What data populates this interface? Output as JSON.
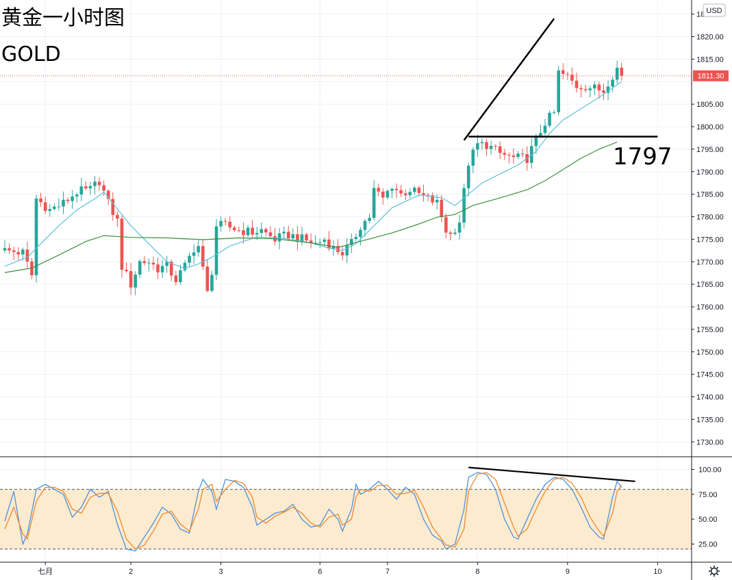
{
  "header": {
    "title": "黄金一小时图",
    "symbol": "GOLD"
  },
  "currency_label": "USD",
  "last_price_label": "1811.30",
  "level_label": "1797",
  "settings_icon": "gear-icon",
  "colors": {
    "up": "#26a69a",
    "down": "#ef5350",
    "ma_fast": "#5bc0de",
    "ma_slow": "#3a8f3a",
    "stoch_k": "#4a90d9",
    "stoch_d": "#f0882a",
    "stoch_band": "#fdebd0",
    "price_line": "#ef5350",
    "trend_lines": "#000000"
  },
  "chart_data": [
    {
      "type": "candlestick",
      "title": "",
      "ylim": [
        1725,
        1823
      ],
      "y_ticks": [
        1730,
        1735,
        1740,
        1745,
        1750,
        1755,
        1760,
        1765,
        1770,
        1775,
        1780,
        1785,
        1790,
        1795,
        1800,
        1805,
        1810,
        1815,
        1820,
        1825
      ],
      "x_ticks": [
        {
          "label": "七月",
          "bar": 9
        },
        {
          "label": "2",
          "bar": 28
        },
        {
          "label": "3",
          "bar": 48
        },
        {
          "label": "6",
          "bar": 70
        },
        {
          "label": "7",
          "bar": 85
        },
        {
          "label": "8",
          "bar": 105
        },
        {
          "label": "9",
          "bar": 125
        },
        {
          "label": "10",
          "bar": 145
        }
      ],
      "anchors": [
        [
          0,
          1772.5
        ],
        [
          4,
          1772
        ],
        [
          6,
          1767
        ],
        [
          7,
          1784
        ],
        [
          10,
          1781.5
        ],
        [
          13,
          1783
        ],
        [
          16,
          1785.5
        ],
        [
          19,
          1786
        ],
        [
          21,
          1788
        ],
        [
          23,
          1783
        ],
        [
          25,
          1779
        ],
        [
          26,
          1769
        ],
        [
          28,
          1765
        ],
        [
          30,
          1770
        ],
        [
          32,
          1770
        ],
        [
          34,
          1768.5
        ],
        [
          36,
          1769
        ],
        [
          38,
          1766
        ],
        [
          40,
          1769
        ],
        [
          42,
          1773
        ],
        [
          43,
          1773.5
        ],
        [
          45,
          1763
        ],
        [
          46,
          1768
        ],
        [
          47,
          1778
        ],
        [
          49,
          1778
        ],
        [
          52,
          1777
        ],
        [
          55,
          1776.5
        ],
        [
          57,
          1777
        ],
        [
          60,
          1775
        ],
        [
          63,
          1776
        ],
        [
          66,
          1775
        ],
        [
          69,
          1774
        ],
        [
          71,
          1775
        ],
        [
          73,
          1773
        ],
        [
          75,
          1772
        ],
        [
          77,
          1774
        ],
        [
          79,
          1778
        ],
        [
          81,
          1780
        ],
        [
          82,
          1786
        ],
        [
          84,
          1784
        ],
        [
          86,
          1787
        ],
        [
          88,
          1785
        ],
        [
          90,
          1786
        ],
        [
          92,
          1785
        ],
        [
          94,
          1784
        ],
        [
          96,
          1783
        ],
        [
          98,
          1777
        ],
        [
          99,
          1776
        ],
        [
          101,
          1779
        ],
        [
          103,
          1792
        ],
        [
          105,
          1796
        ],
        [
          107,
          1796
        ],
        [
          110,
          1794
        ],
        [
          113,
          1793
        ],
        [
          116,
          1793
        ],
        [
          118,
          1797
        ],
        [
          120,
          1801
        ],
        [
          122,
          1803
        ],
        [
          123,
          1812
        ],
        [
          125,
          1811
        ],
        [
          127,
          1809
        ],
        [
          129,
          1809
        ],
        [
          131,
          1808.5
        ],
        [
          133,
          1808
        ],
        [
          134,
          1810
        ],
        [
          136,
          1813
        ],
        [
          137,
          1811.3
        ]
      ],
      "ma_fast": [
        [
          0,
          1769
        ],
        [
          5,
          1771
        ],
        [
          8,
          1774
        ],
        [
          12,
          1778
        ],
        [
          16,
          1781.5
        ],
        [
          20,
          1784
        ],
        [
          22,
          1785.5
        ],
        [
          24,
          1783
        ],
        [
          28,
          1778
        ],
        [
          32,
          1774
        ],
        [
          36,
          1770
        ],
        [
          40,
          1768.5
        ],
        [
          43,
          1769.5
        ],
        [
          46,
          1771
        ],
        [
          50,
          1773.5
        ],
        [
          56,
          1775.5
        ],
        [
          62,
          1775.2
        ],
        [
          68,
          1774.2
        ],
        [
          72,
          1773
        ],
        [
          75,
          1772.5
        ],
        [
          78,
          1774
        ],
        [
          82,
          1778
        ],
        [
          86,
          1782
        ],
        [
          92,
          1784.8
        ],
        [
          97,
          1784.2
        ],
        [
          100,
          1782.5
        ],
        [
          103,
          1785
        ],
        [
          106,
          1787.5
        ],
        [
          110,
          1789.5
        ],
        [
          114,
          1791.5
        ],
        [
          118,
          1794.5
        ],
        [
          121,
          1798.5
        ],
        [
          124,
          1801.5
        ],
        [
          128,
          1804
        ],
        [
          132,
          1806.5
        ],
        [
          137,
          1810
        ]
      ],
      "ma_slow": [
        [
          0,
          1767.6
        ],
        [
          6,
          1768.6
        ],
        [
          12,
          1771.5
        ],
        [
          18,
          1774.5
        ],
        [
          22,
          1775.8
        ],
        [
          28,
          1775.4
        ],
        [
          36,
          1775.3
        ],
        [
          44,
          1774.9
        ],
        [
          52,
          1775.3
        ],
        [
          60,
          1775.1
        ],
        [
          68,
          1774.2
        ],
        [
          74,
          1773.2
        ],
        [
          80,
          1774.8
        ],
        [
          86,
          1776.4
        ],
        [
          92,
          1778.4
        ],
        [
          96,
          1779.9
        ],
        [
          100,
          1780.5
        ],
        [
          104,
          1782.5
        ],
        [
          110,
          1784.2
        ],
        [
          116,
          1786
        ],
        [
          120,
          1788
        ],
        [
          124,
          1790.5
        ],
        [
          128,
          1793
        ],
        [
          132,
          1795
        ],
        [
          136,
          1796.6
        ]
      ],
      "trend_lines": [
        {
          "from": [
            102,
            1797
          ],
          "to": [
            122,
            1824
          ]
        },
        {
          "from": [
            103,
            1797.8
          ],
          "to": [
            145,
            1797.8
          ]
        }
      ],
      "price_line": 1811.3
    },
    {
      "type": "line",
      "title": "",
      "ylim": [
        0,
        110
      ],
      "y_ticks": [
        25,
        50,
        75,
        100
      ],
      "band": [
        20,
        80
      ],
      "k_line": [
        [
          0,
          48
        ],
        [
          2,
          78
        ],
        [
          4,
          25
        ],
        [
          5,
          35
        ],
        [
          7,
          80
        ],
        [
          9,
          85
        ],
        [
          11,
          80
        ],
        [
          13,
          75
        ],
        [
          15,
          52
        ],
        [
          17,
          62
        ],
        [
          19,
          80
        ],
        [
          21,
          72
        ],
        [
          23,
          78
        ],
        [
          25,
          45
        ],
        [
          27,
          20
        ],
        [
          29,
          18
        ],
        [
          31,
          32
        ],
        [
          33,
          46
        ],
        [
          35,
          62
        ],
        [
          37,
          55
        ],
        [
          39,
          40
        ],
        [
          41,
          36
        ],
        [
          43,
          78
        ],
        [
          44,
          90
        ],
        [
          46,
          78
        ],
        [
          47,
          60
        ],
        [
          49,
          90
        ],
        [
          51,
          88
        ],
        [
          53,
          82
        ],
        [
          55,
          62
        ],
        [
          56,
          44
        ],
        [
          58,
          50
        ],
        [
          60,
          56
        ],
        [
          62,
          58
        ],
        [
          64,
          65
        ],
        [
          66,
          50
        ],
        [
          68,
          42
        ],
        [
          70,
          44
        ],
        [
          72,
          60
        ],
        [
          74,
          50
        ],
        [
          75,
          38
        ],
        [
          77,
          60
        ],
        [
          78,
          85
        ],
        [
          79,
          75
        ],
        [
          81,
          80
        ],
        [
          83,
          88
        ],
        [
          85,
          80
        ],
        [
          87,
          70
        ],
        [
          89,
          82
        ],
        [
          91,
          75
        ],
        [
          93,
          50
        ],
        [
          95,
          34
        ],
        [
          97,
          28
        ],
        [
          98,
          20
        ],
        [
          100,
          25
        ],
        [
          102,
          60
        ],
        [
          103,
          92
        ],
        [
          105,
          97
        ],
        [
          107,
          95
        ],
        [
          109,
          80
        ],
        [
          111,
          50
        ],
        [
          113,
          32
        ],
        [
          114,
          30
        ],
        [
          116,
          50
        ],
        [
          118,
          70
        ],
        [
          120,
          85
        ],
        [
          122,
          92
        ],
        [
          124,
          90
        ],
        [
          126,
          80
        ],
        [
          128,
          62
        ],
        [
          130,
          42
        ],
        [
          132,
          32
        ],
        [
          133,
          30
        ],
        [
          135,
          72
        ],
        [
          136,
          88
        ],
        [
          137,
          82
        ]
      ],
      "d_line": [
        [
          0,
          40
        ],
        [
          2,
          62
        ],
        [
          4,
          35
        ],
        [
          5,
          30
        ],
        [
          7,
          68
        ],
        [
          9,
          82
        ],
        [
          11,
          82
        ],
        [
          13,
          78
        ],
        [
          15,
          60
        ],
        [
          17,
          56
        ],
        [
          19,
          72
        ],
        [
          21,
          76
        ],
        [
          23,
          76
        ],
        [
          25,
          58
        ],
        [
          27,
          30
        ],
        [
          29,
          20
        ],
        [
          31,
          24
        ],
        [
          33,
          38
        ],
        [
          35,
          55
        ],
        [
          37,
          58
        ],
        [
          39,
          45
        ],
        [
          41,
          38
        ],
        [
          43,
          60
        ],
        [
          44,
          80
        ],
        [
          46,
          85
        ],
        [
          47,
          68
        ],
        [
          49,
          80
        ],
        [
          51,
          89
        ],
        [
          53,
          86
        ],
        [
          55,
          72
        ],
        [
          56,
          52
        ],
        [
          58,
          46
        ],
        [
          60,
          53
        ],
        [
          62,
          57
        ],
        [
          64,
          62
        ],
        [
          66,
          56
        ],
        [
          68,
          46
        ],
        [
          70,
          42
        ],
        [
          72,
          52
        ],
        [
          74,
          55
        ],
        [
          75,
          44
        ],
        [
          77,
          50
        ],
        [
          78,
          72
        ],
        [
          79,
          80
        ],
        [
          81,
          78
        ],
        [
          83,
          84
        ],
        [
          85,
          84
        ],
        [
          87,
          75
        ],
        [
          89,
          76
        ],
        [
          91,
          79
        ],
        [
          93,
          62
        ],
        [
          95,
          42
        ],
        [
          97,
          30
        ],
        [
          98,
          24
        ],
        [
          100,
          22
        ],
        [
          102,
          40
        ],
        [
          103,
          78
        ],
        [
          105,
          95
        ],
        [
          107,
          97
        ],
        [
          109,
          90
        ],
        [
          111,
          66
        ],
        [
          113,
          42
        ],
        [
          114,
          33
        ],
        [
          116,
          40
        ],
        [
          118,
          60
        ],
        [
          120,
          78
        ],
        [
          122,
          90
        ],
        [
          124,
          92
        ],
        [
          126,
          86
        ],
        [
          128,
          72
        ],
        [
          130,
          52
        ],
        [
          132,
          38
        ],
        [
          133,
          33
        ],
        [
          135,
          56
        ],
        [
          136,
          78
        ],
        [
          137,
          84
        ]
      ],
      "trend_line": {
        "from": [
          103,
          102
        ],
        "to": [
          140,
          88
        ]
      }
    }
  ]
}
